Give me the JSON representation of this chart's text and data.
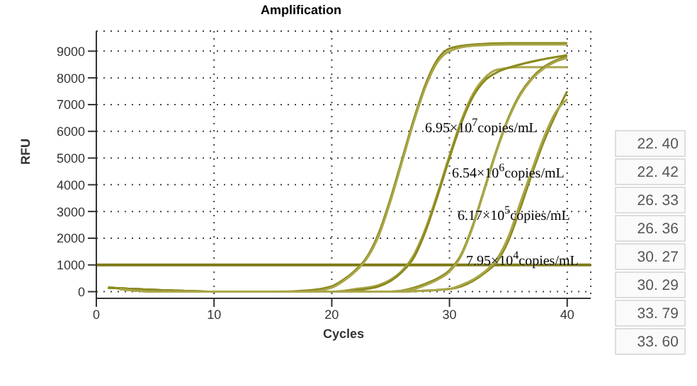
{
  "chart_data": {
    "type": "line",
    "title": "Amplification",
    "xlabel": "Cycles",
    "ylabel": "RFU",
    "xlim": [
      0,
      42
    ],
    "xticks": [
      0,
      10,
      20,
      30,
      40
    ],
    "ylim": [
      -250,
      9750
    ],
    "yticks": [
      0,
      1000,
      2000,
      3000,
      4000,
      5000,
      6000,
      7000,
      8000,
      9000
    ],
    "grid": true,
    "legend": false,
    "marker": "none",
    "line_style": "solid",
    "series": [
      {
        "color": "#8c8a1e",
        "x": [
          1,
          3,
          6,
          10,
          15,
          18,
          20,
          21,
          22,
          23,
          24,
          25,
          26,
          27,
          28,
          29,
          30,
          32,
          35,
          40
        ],
        "values": [
          150,
          100,
          50,
          0,
          0,
          50,
          200,
          450,
          800,
          1300,
          2200,
          3500,
          5000,
          6500,
          7800,
          8700,
          9100,
          9250,
          9300,
          9300
        ]
      },
      {
        "color": "#a9a64a",
        "x": [
          2,
          3,
          6,
          10,
          15,
          18,
          20,
          21,
          22,
          23,
          24,
          25,
          26,
          27,
          28,
          29,
          30,
          32,
          35,
          40
        ],
        "values": [
          100,
          50,
          0,
          0,
          0,
          0,
          150,
          400,
          750,
          1250,
          2100,
          3400,
          4900,
          6400,
          7700,
          8600,
          9000,
          9200,
          9250,
          9250
        ]
      },
      {
        "color": "#a9a64a",
        "x": [
          1,
          3,
          6,
          10,
          15,
          20,
          22,
          24,
          25,
          26,
          27,
          28,
          29,
          30,
          31,
          32,
          33,
          34,
          36,
          40
        ],
        "values": [
          150,
          100,
          50,
          0,
          0,
          0,
          100,
          250,
          450,
          800,
          1400,
          2400,
          3700,
          5100,
          6400,
          7400,
          8000,
          8300,
          8400,
          8400
        ]
      },
      {
        "color": "#8c8a1e",
        "x": [
          2,
          3,
          6,
          10,
          15,
          20,
          22,
          24,
          25,
          26,
          27,
          28,
          29,
          30,
          31,
          32,
          33,
          34,
          36,
          38,
          40
        ],
        "values": [
          100,
          50,
          0,
          0,
          0,
          0,
          50,
          200,
          400,
          750,
          1300,
          2300,
          3600,
          5000,
          6300,
          7300,
          7900,
          8200,
          8500,
          8700,
          8850
        ]
      },
      {
        "color": "#8c8a1e",
        "x": [
          1,
          3,
          6,
          10,
          15,
          20,
          25,
          27,
          28,
          29,
          30,
          31,
          32,
          33,
          34,
          35,
          36,
          37,
          38,
          39,
          40
        ],
        "values": [
          150,
          100,
          50,
          0,
          0,
          0,
          0,
          150,
          300,
          500,
          800,
          1400,
          2500,
          3900,
          5300,
          6500,
          7400,
          8000,
          8400,
          8650,
          8800
        ]
      },
      {
        "color": "#a9a64a",
        "x": [
          2,
          3,
          6,
          10,
          15,
          20,
          25,
          27,
          28,
          29,
          30,
          31,
          32,
          33,
          34,
          35,
          36,
          37,
          38,
          39,
          40
        ],
        "values": [
          100,
          50,
          0,
          0,
          0,
          0,
          0,
          100,
          250,
          450,
          750,
          1350,
          2450,
          3850,
          5250,
          6450,
          7350,
          7950,
          8350,
          8600,
          8750
        ]
      },
      {
        "color": "#8c8a1e",
        "x": [
          1,
          3,
          6,
          10,
          15,
          20,
          25,
          30,
          31,
          32,
          33,
          34,
          35,
          36,
          37,
          38,
          39,
          40
        ],
        "values": [
          150,
          100,
          50,
          0,
          0,
          0,
          0,
          100,
          200,
          400,
          700,
          1100,
          1900,
          3100,
          4400,
          5600,
          6600,
          7500
        ]
      },
      {
        "color": "#a9a64a",
        "x": [
          2,
          3,
          6,
          10,
          15,
          20,
          25,
          30,
          31,
          32,
          33,
          34,
          35,
          36,
          37,
          38,
          39,
          40
        ],
        "values": [
          100,
          50,
          0,
          0,
          0,
          0,
          0,
          100,
          250,
          450,
          750,
          1200,
          2050,
          3300,
          4550,
          5750,
          6700,
          7200
        ]
      }
    ],
    "ref_lines": [
      {
        "axis": "y",
        "value": 1000,
        "color": "#7d7a10"
      }
    ],
    "annotations": [
      "6.95×10$^{7}$copies/mL",
      "6.54×10$^{6}$copies/mL",
      "6.17×10$^{5}$copies/mL",
      "7.95×10$^{4}$copies/mL",
      "22. 40",
      "22. 42",
      "26. 33",
      "26. 36",
      "30. 27",
      "30. 29",
      "33. 79",
      "33. 60"
    ]
  }
}
